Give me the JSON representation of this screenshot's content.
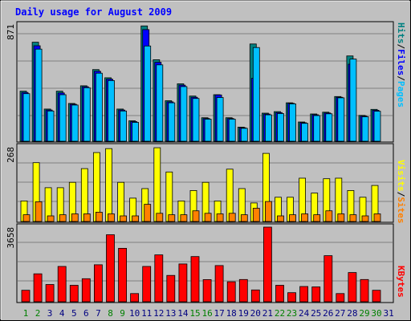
{
  "title": "Daily usage for August 2009",
  "colors": {
    "background": "#c0c0c0",
    "title": "#0000ff",
    "gridline": "#808080",
    "hits": "#008080",
    "files": "#0000ff",
    "pages": "#00bfff",
    "visits": "#ffff00",
    "sites": "#ff8000",
    "kbytes": "#ff0000",
    "weekday_label": "#000080",
    "weekend_label": "#008000"
  },
  "legend": {
    "pages": "Pages",
    "files": "Files",
    "hits": "Hits",
    "sites": "Sites",
    "visits": "Visits",
    "kbytes": "KBytes",
    "sep": "/"
  },
  "chart_data": [
    {
      "type": "bar",
      "name": "hits-files-pages",
      "ymax_label": "871",
      "ylim": [
        0,
        871
      ],
      "categories": [
        "1",
        "2",
        "3",
        "4",
        "5",
        "6",
        "7",
        "8",
        "9",
        "10",
        "11",
        "12",
        "13",
        "14",
        "15",
        "16",
        "17",
        "18",
        "19",
        "20",
        "21",
        "22",
        "23",
        "24",
        "25",
        "26",
        "27",
        "28",
        "29",
        "30",
        "31"
      ],
      "weekend": [
        1,
        2,
        8,
        9,
        15,
        16,
        22,
        23,
        29,
        30
      ],
      "series": [
        {
          "name": "Hits",
          "color_key": "hits",
          "values": [
            372,
            736,
            239,
            372,
            281,
            412,
            533,
            472,
            239,
            152,
            857,
            606,
            301,
            427,
            336,
            175,
            346,
            175,
            105,
            723,
            209,
            220,
            286,
            143,
            203,
            216,
            332,
            634,
            192,
            237,
            0
          ]
        },
        {
          "name": "Files",
          "color_key": "files",
          "values": [
            363,
            710,
            232,
            359,
            275,
            405,
            520,
            462,
            232,
            146,
            830,
            587,
            293,
            417,
            327,
            169,
            344,
            169,
            100,
            468,
            202,
            213,
            282,
            138,
            197,
            210,
            327,
            573,
            187,
            230,
            0
          ]
        },
        {
          "name": "Pages",
          "color_key": "pages",
          "values": [
            354,
            685,
            225,
            346,
            269,
            398,
            506,
            451,
            225,
            140,
            708,
            568,
            286,
            406,
            318,
            164,
            325,
            164,
            96,
            697,
            196,
            206,
            278,
            133,
            191,
            204,
            323,
            611,
            182,
            223,
            0
          ]
        }
      ]
    },
    {
      "type": "bar",
      "name": "visits-sites",
      "ymax_label": "268",
      "ylim": [
        0,
        268
      ],
      "categories": [
        "1",
        "2",
        "3",
        "4",
        "5",
        "6",
        "7",
        "8",
        "9",
        "10",
        "11",
        "12",
        "13",
        "14",
        "15",
        "16",
        "17",
        "18",
        "19",
        "20",
        "21",
        "22",
        "23",
        "24",
        "25",
        "26",
        "27",
        "28",
        "29",
        "30",
        "31"
      ],
      "series": [
        {
          "name": "Visits",
          "color_key": "visits",
          "values": [
            73,
            209,
            120,
            120,
            139,
            188,
            245,
            259,
            139,
            83,
            117,
            262,
            176,
            73,
            110,
            139,
            73,
            186,
            117,
            66,
            242,
            86,
            86,
            154,
            101,
            152,
            154,
            110,
            86,
            128,
            0
          ]
        },
        {
          "name": "Sites",
          "color_key": "sites",
          "values": [
            24,
            70,
            20,
            24,
            27,
            27,
            33,
            27,
            20,
            20,
            61,
            29,
            24,
            24,
            38,
            29,
            27,
            29,
            24,
            47,
            71,
            20,
            24,
            27,
            24,
            38,
            27,
            24,
            20,
            27,
            0
          ]
        }
      ]
    },
    {
      "type": "bar",
      "name": "kbytes",
      "ymax_label": "3658",
      "ylim": [
        0,
        3658
      ],
      "categories": [
        "1",
        "2",
        "3",
        "4",
        "5",
        "6",
        "7",
        "8",
        "9",
        "10",
        "11",
        "12",
        "13",
        "14",
        "15",
        "16",
        "17",
        "18",
        "19",
        "20",
        "21",
        "22",
        "23",
        "24",
        "25",
        "26",
        "27",
        "28",
        "29",
        "30",
        "31"
      ],
      "series": [
        {
          "name": "KBytes",
          "color_key": "kbytes",
          "values": [
            564,
            1369,
            846,
            1732,
            806,
            1127,
            1812,
            3283,
            2618,
            403,
            1732,
            2296,
            1289,
            1853,
            2216,
            1087,
            1772,
            979,
            1088,
            577,
            3658,
            806,
            443,
            746,
            726,
            2256,
            403,
            1430,
            1088,
            564,
            0
          ]
        }
      ]
    }
  ]
}
